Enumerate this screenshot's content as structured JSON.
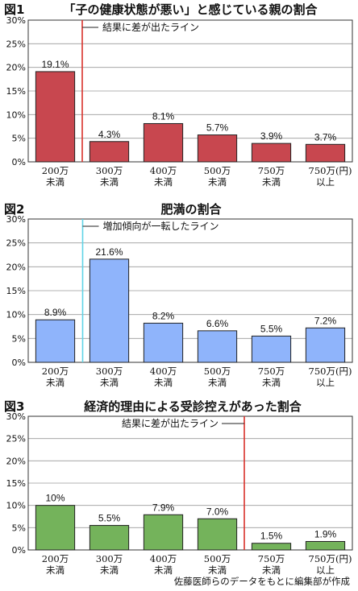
{
  "chart_data": [
    {
      "type": "bar",
      "figure_label": "図1",
      "title": "「子の健康状態が悪い」と感じている親の割合",
      "categories": [
        [
          "200万",
          "未満"
        ],
        [
          "300万",
          "未満"
        ],
        [
          "400万",
          "未満"
        ],
        [
          "500万",
          "未満"
        ],
        [
          "750万",
          "未満"
        ],
        [
          "750万(円)",
          "以上"
        ]
      ],
      "values": [
        19.1,
        4.3,
        8.1,
        5.7,
        3.9,
        3.7
      ],
      "value_labels": [
        "19.1%",
        "4.3%",
        "8.1%",
        "5.7%",
        "3.9%",
        "3.7%"
      ],
      "y_ticks": [
        "0%",
        "5%",
        "10%",
        "15%",
        "20%",
        "25%",
        "30%"
      ],
      "ylim": [
        0,
        30
      ],
      "bar_color": "#c8474f",
      "annotation": {
        "text": "結果に差が出たライン",
        "after_category": 0,
        "line_color": "#d9302a",
        "text_side": "right"
      }
    },
    {
      "type": "bar",
      "figure_label": "図2",
      "title": "肥満の割合",
      "categories": [
        [
          "200万",
          "未満"
        ],
        [
          "300万",
          "未満"
        ],
        [
          "400万",
          "未満"
        ],
        [
          "500万",
          "未満"
        ],
        [
          "750万",
          "未満"
        ],
        [
          "750万(円)",
          "以上"
        ]
      ],
      "values": [
        8.9,
        21.6,
        8.2,
        6.6,
        5.5,
        7.2
      ],
      "value_labels": [
        "8.9%",
        "21.6%",
        "8.2%",
        "6.6%",
        "5.5%",
        "7.2%"
      ],
      "y_ticks": [
        "0%",
        "5%",
        "10%",
        "15%",
        "20%",
        "25%",
        "30%"
      ],
      "ylim": [
        0,
        30
      ],
      "bar_color": "#8fb4fb",
      "annotation": {
        "text": "増加傾向が一転したライン",
        "after_category": 0,
        "line_color": "#5fd3e6",
        "text_side": "right"
      }
    },
    {
      "type": "bar",
      "figure_label": "図3",
      "title": "経済的理由による受診控えがあった割合",
      "categories": [
        [
          "200万",
          "未満"
        ],
        [
          "300万",
          "未満"
        ],
        [
          "400万",
          "未満"
        ],
        [
          "500万",
          "未満"
        ],
        [
          "750万",
          "未満"
        ],
        [
          "750万(円)",
          "以上"
        ]
      ],
      "values": [
        10,
        5.5,
        7.9,
        7.0,
        1.5,
        1.9
      ],
      "value_labels": [
        "10%",
        "5.5%",
        "7.9%",
        "7.0%",
        "1.5%",
        "1.9%"
      ],
      "y_ticks": [
        "0%",
        "5%",
        "10%",
        "15%",
        "20%",
        "25%",
        "30%"
      ],
      "ylim": [
        0,
        30
      ],
      "bar_color": "#74b35b",
      "annotation": {
        "text": "結果に差が出たライン",
        "after_category": 3,
        "line_color": "#d9302a",
        "text_side": "left"
      }
    }
  ],
  "credit": "佐藤医師らのデータをもとに編集部が作成"
}
